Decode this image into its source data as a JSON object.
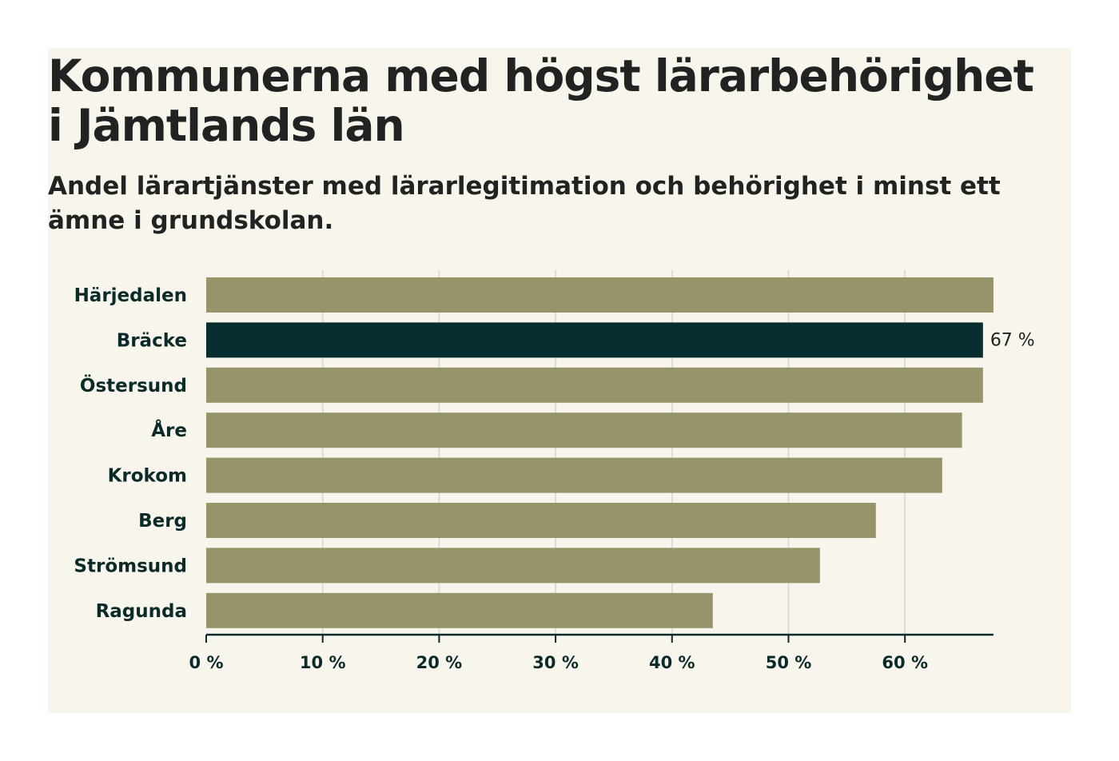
{
  "title": "Kommunerna med högst lärarbehörighet i Jämtlands län",
  "subtitle": "Andel lärartjänster med lärarlegitimation och behörighet i minst ett ämne i grundskolan.",
  "colors": {
    "bar": "#98946a",
    "highlight": "#072d2e",
    "grid": "#dcdcd4",
    "axis": "#0b2b2b",
    "background": "#f7f5ec"
  },
  "chart_data": {
    "type": "bar",
    "orientation": "horizontal",
    "title": "Kommunerna med högst lärarbehörighet i Jämtlands län",
    "subtitle": "Andel lärartjänster med lärarlegitimation och behörighet i minst ett ämne i grundskolan.",
    "categories": [
      "Härjedalen",
      "Bräcke",
      "Östersund",
      "Åre",
      "Krokom",
      "Berg",
      "Strömsund",
      "Ragunda"
    ],
    "values": [
      67.6,
      66.7,
      66.7,
      64.9,
      63.2,
      57.5,
      52.7,
      43.5
    ],
    "highlight": "Bräcke",
    "data_labels": [
      {
        "category": "Bräcke",
        "text": "67 %"
      }
    ],
    "xlim": [
      0,
      70
    ],
    "xticks": [
      0,
      10,
      20,
      30,
      40,
      50,
      60
    ],
    "xtick_labels": [
      "0 %",
      "10 %",
      "20 %",
      "30 %",
      "40 %",
      "50 %",
      "60 %"
    ],
    "xlabel": "",
    "ylabel": "",
    "grid": true
  }
}
